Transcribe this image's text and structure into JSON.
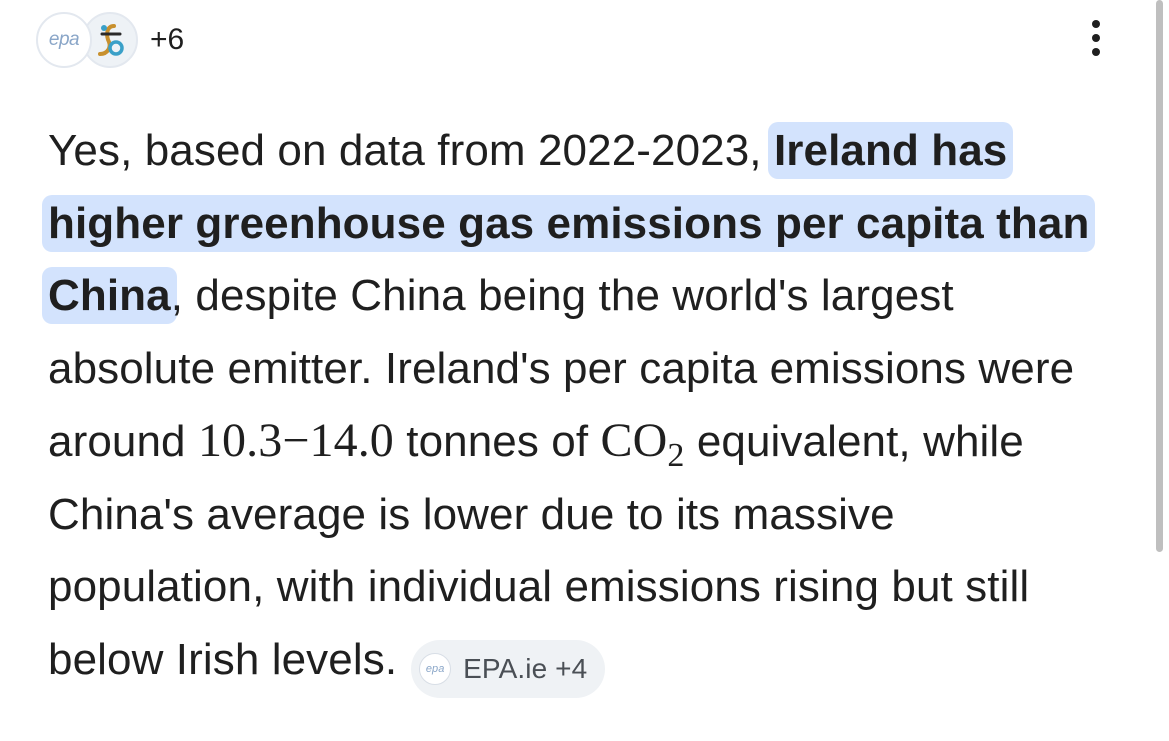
{
  "header": {
    "favicons": [
      {
        "icon": "epa-logo-icon",
        "text": "epa"
      },
      {
        "icon": "scientific-source-logo-icon"
      }
    ],
    "more_sources": "+6",
    "menu_icon": "more-vert-icon"
  },
  "answer": {
    "part1": "Yes, based on data from 2022-2023, ",
    "highlight": "Ireland has higher greenhouse gas emissions per capita than China",
    "part2": ", despite China being the world's largest absolute emitter. Ireland's per capita emissions were around ",
    "math_range": "10.3−14.0",
    "part3": " tonnes of ",
    "math_co": "CO",
    "math_sub": "2",
    "part4": " equivalent, while China's average is lower due to its massive population, with individual emissions rising but still below Irish levels."
  },
  "citation_chip": {
    "icon_text": "epa",
    "label": "EPA.ie +4"
  },
  "colors": {
    "highlight_bg": "#d3e3fd",
    "chip_bg": "#eff2f5",
    "text": "#1f1f1f"
  }
}
